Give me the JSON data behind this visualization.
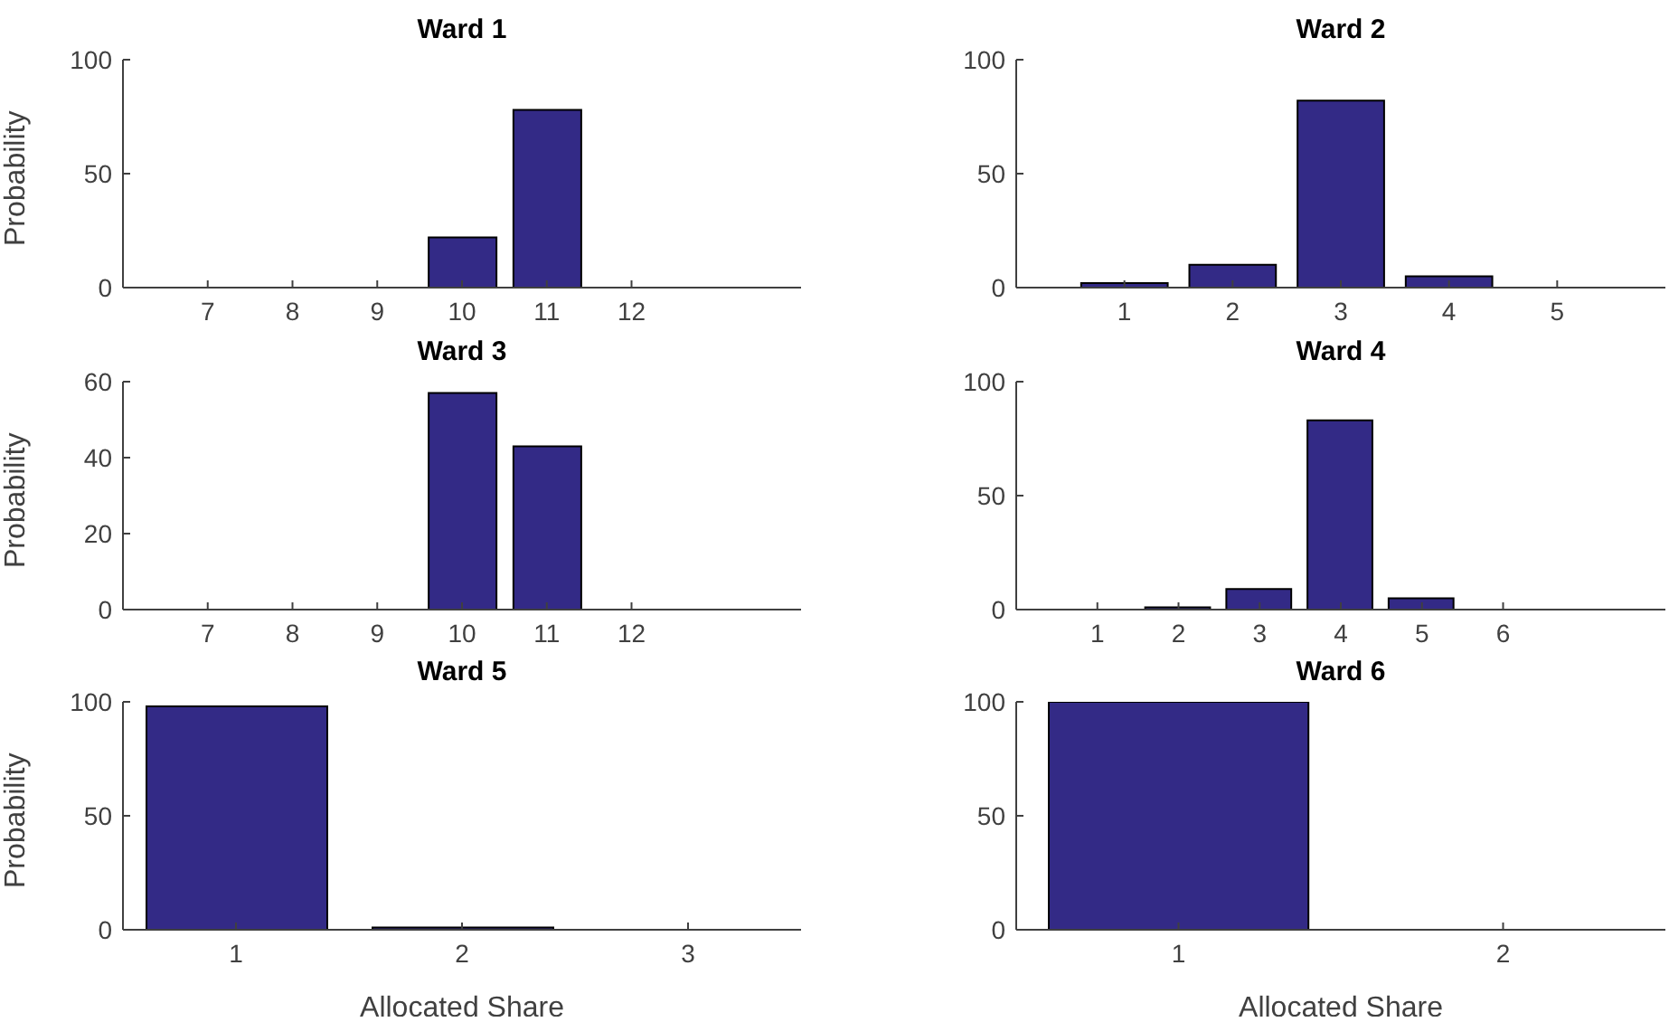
{
  "chart_data": [
    {
      "type": "bar",
      "title": "Ward 1",
      "ylabel": "Probability",
      "x": [
        7,
        8,
        9,
        10,
        11,
        12
      ],
      "values": [
        0,
        0,
        0,
        22,
        78,
        0
      ],
      "color": "#332a86",
      "xlim": [
        6,
        14
      ],
      "xticks": [
        7,
        8,
        9,
        10,
        11,
        12
      ],
      "ylim": [
        0,
        100
      ],
      "yticks": [
        0,
        50,
        100
      ]
    },
    {
      "type": "bar",
      "title": "Ward 2",
      "x": [
        1,
        2,
        3,
        4,
        5
      ],
      "values": [
        2,
        10,
        82,
        5,
        0
      ],
      "color": "#332a86",
      "xlim": [
        0,
        6
      ],
      "xticks": [
        1,
        2,
        3,
        4,
        5
      ],
      "ylim": [
        0,
        100
      ],
      "yticks": [
        0,
        50,
        100
      ]
    },
    {
      "type": "bar",
      "title": "Ward 3",
      "ylabel": "Probability",
      "x": [
        7,
        8,
        9,
        10,
        11,
        12
      ],
      "values": [
        0,
        0,
        0,
        57,
        43,
        0
      ],
      "color": "#332a86",
      "xlim": [
        6,
        14
      ],
      "xticks": [
        7,
        8,
        9,
        10,
        11,
        12
      ],
      "ylim": [
        0,
        60
      ],
      "yticks": [
        0,
        20,
        40,
        60
      ]
    },
    {
      "type": "bar",
      "title": "Ward 4",
      "x": [
        1,
        2,
        3,
        4,
        5,
        6
      ],
      "values": [
        0,
        1,
        9,
        83,
        5,
        0
      ],
      "color": "#332a86",
      "xlim": [
        0,
        8
      ],
      "xticks": [
        1,
        2,
        3,
        4,
        5,
        6
      ],
      "ylim": [
        0,
        100
      ],
      "yticks": [
        0,
        50,
        100
      ]
    },
    {
      "type": "bar",
      "title": "Ward 5",
      "ylabel": "Probability",
      "xlabel": "Allocated Share",
      "x": [
        1,
        2,
        3
      ],
      "values": [
        98,
        1,
        0
      ],
      "color": "#332a86",
      "xlim": [
        0.5,
        3.5
      ],
      "xticks": [
        1,
        2,
        3
      ],
      "ylim": [
        0,
        100
      ],
      "yticks": [
        0,
        50,
        100
      ]
    },
    {
      "type": "bar",
      "title": "Ward 6",
      "xlabel": "Allocated Share",
      "x": [
        1,
        2
      ],
      "values": [
        100,
        0
      ],
      "color": "#332a86",
      "xlim": [
        0.5,
        2.5
      ],
      "xticks": [
        1,
        2
      ],
      "ylim": [
        0,
        100
      ],
      "yticks": [
        0,
        50,
        100
      ]
    }
  ]
}
